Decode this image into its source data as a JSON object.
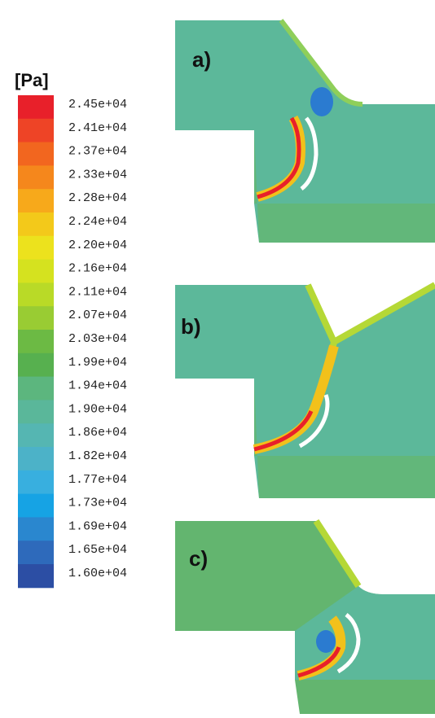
{
  "legend": {
    "title": "[Pa]",
    "labels": [
      "2.45e+04",
      "2.41e+04",
      "2.37e+04",
      "2.33e+04",
      "2.28e+04",
      "2.24e+04",
      "2.20e+04",
      "2.16e+04",
      "2.11e+04",
      "2.07e+04",
      "2.03e+04",
      "1.99e+04",
      "1.94e+04",
      "1.90e+04",
      "1.86e+04",
      "1.82e+04",
      "1.77e+04",
      "1.73e+04",
      "1.69e+04",
      "1.65e+04",
      "1.60e+04"
    ],
    "colors": [
      "#e8202a",
      "#ee4426",
      "#f2661f",
      "#f5871c",
      "#f7a91b",
      "#f3c91a",
      "#ece21d",
      "#d5e21f",
      "#b9da27",
      "#99cc33",
      "#6cba44",
      "#57b04f",
      "#5cb67e",
      "#5ab79a",
      "#55b6b2",
      "#4cb2c8",
      "#38afdf",
      "#16a3e4",
      "#2a87cf",
      "#2e6abb",
      "#2c4ea4"
    ]
  },
  "panels": [
    {
      "label": "a)"
    },
    {
      "label": "b)"
    },
    {
      "label": "c)"
    }
  ]
}
